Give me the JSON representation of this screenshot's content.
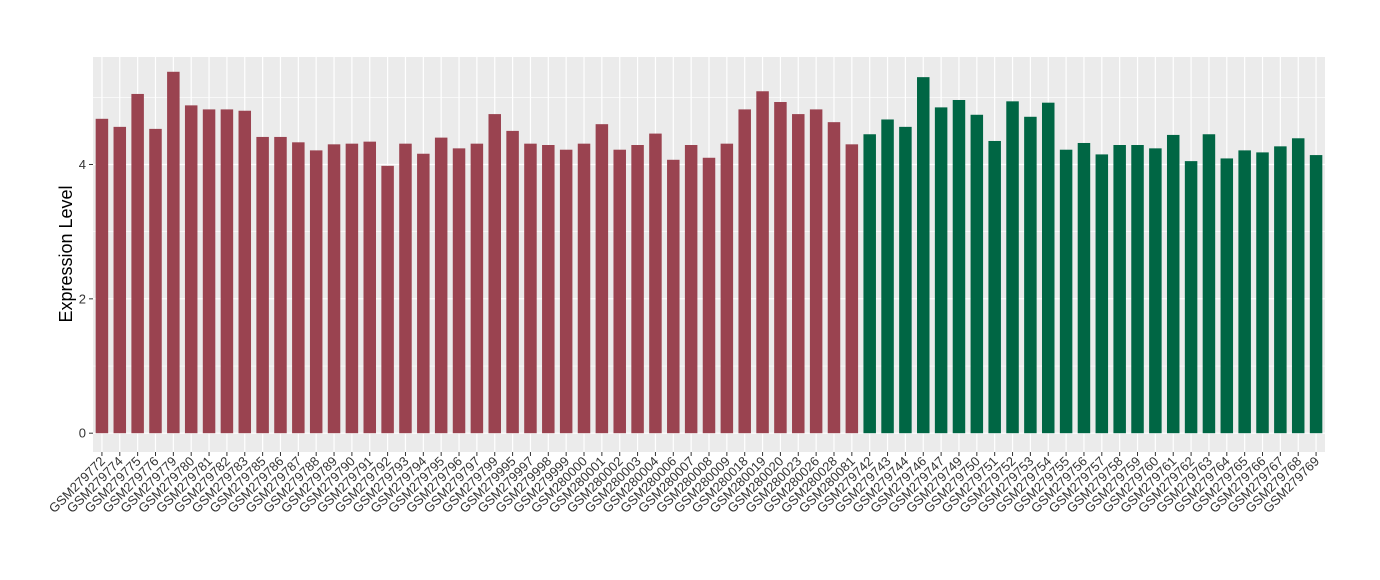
{
  "chart_data": {
    "type": "bar",
    "title": "",
    "xlabel": "",
    "ylabel": "Expression Level",
    "ylim": [
      -0.28,
      5.6
    ],
    "yticks": [
      0,
      2,
      4
    ],
    "grid": true,
    "legend": "none",
    "colors": {
      "group_a": "#9A4350",
      "group_b": "#006644",
      "panel": "#EBEBEB",
      "grid": "#FFFFFF"
    },
    "series": [
      {
        "name": "",
        "color": "#9A4350",
        "categories": [
          "GSM279772",
          "GSM279774",
          "GSM279775",
          "GSM279776",
          "GSM279779",
          "GSM279780",
          "GSM279781",
          "GSM279782",
          "GSM279783",
          "GSM279785",
          "GSM279786",
          "GSM279787",
          "GSM279788",
          "GSM279789",
          "GSM279790",
          "GSM279791",
          "GSM279792",
          "GSM279793",
          "GSM279794",
          "GSM279795",
          "GSM279796",
          "GSM279797",
          "GSM279799",
          "GSM279995",
          "GSM279997",
          "GSM279998",
          "GSM279999",
          "GSM280000",
          "GSM280001",
          "GSM280002",
          "GSM280003",
          "GSM280004",
          "GSM280006",
          "GSM280007",
          "GSM280008",
          "GSM280009",
          "GSM280018",
          "GSM280019",
          "GSM280020",
          "GSM280023",
          "GSM280026",
          "GSM280028",
          "GSM280081"
        ],
        "values": [
          4.68,
          4.56,
          5.05,
          4.53,
          5.38,
          4.88,
          4.82,
          4.82,
          4.8,
          4.41,
          4.41,
          4.33,
          4.21,
          4.3,
          4.31,
          4.34,
          3.98,
          4.31,
          4.16,
          4.4,
          4.24,
          4.31,
          4.75,
          4.5,
          4.31,
          4.29,
          4.22,
          4.31,
          4.6,
          4.22,
          4.29,
          4.46,
          4.07,
          4.29,
          4.1,
          4.31,
          4.82,
          5.09,
          4.93,
          4.75,
          4.82,
          4.63,
          4.3
        ]
      },
      {
        "name": "",
        "color": "#006644",
        "categories": [
          "GSM279742",
          "GSM279743",
          "GSM279744",
          "GSM279746",
          "GSM279747",
          "GSM279749",
          "GSM279750",
          "GSM279751",
          "GSM279752",
          "GSM279753",
          "GSM279754",
          "GSM279755",
          "GSM279756",
          "GSM279757",
          "GSM279758",
          "GSM279759",
          "GSM279760",
          "GSM279761",
          "GSM279762",
          "GSM279763",
          "GSM279764",
          "GSM279765",
          "GSM279766",
          "GSM279767",
          "GSM279768",
          "GSM279769"
        ],
        "values": [
          4.45,
          4.67,
          4.56,
          5.3,
          4.85,
          4.96,
          4.74,
          4.35,
          4.94,
          4.71,
          4.92,
          4.22,
          4.32,
          4.15,
          4.29,
          4.29,
          4.24,
          4.44,
          4.05,
          4.45,
          4.09,
          4.21,
          4.18,
          4.27,
          4.39,
          4.14
        ]
      }
    ]
  }
}
